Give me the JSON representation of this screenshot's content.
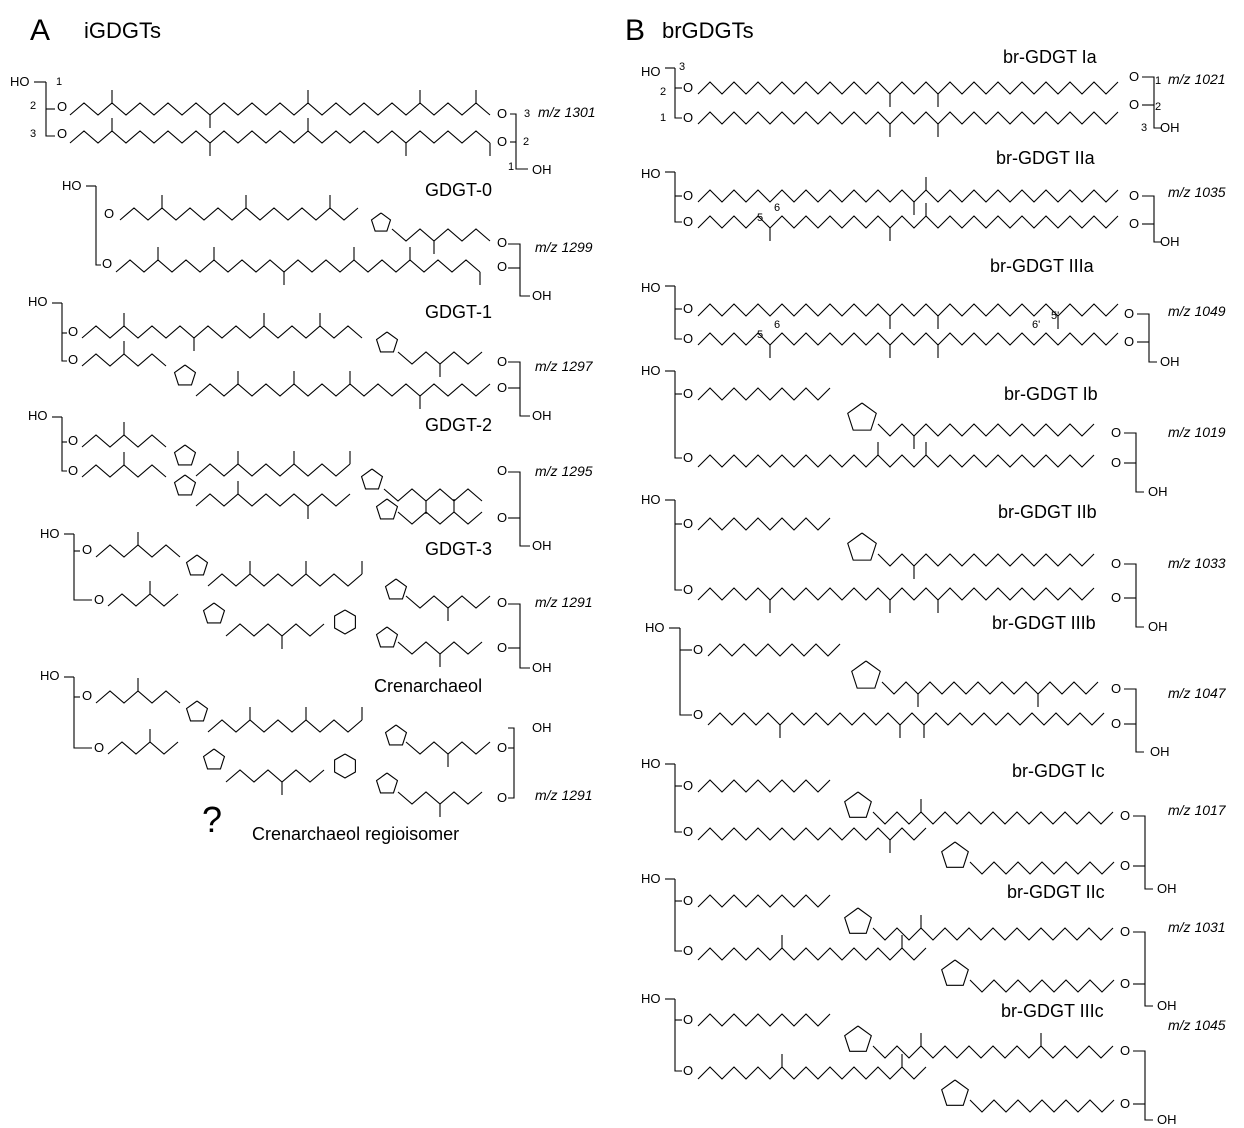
{
  "panels": [
    {
      "letter": "A",
      "title": "iGDGTs",
      "compounds": [
        {
          "name": "GDGT-0",
          "mz": "m/z 1301"
        },
        {
          "name": "GDGT-1",
          "mz": "m/z 1299"
        },
        {
          "name": "GDGT-2",
          "mz": "m/z 1297"
        },
        {
          "name": "GDGT-3",
          "mz": "m/z 1295"
        },
        {
          "name": "Crenarchaeol",
          "mz": "m/z 1291"
        },
        {
          "name": "Crenarchaeol regioisomer",
          "mz": "m/z 1291"
        }
      ],
      "unknown_marker": "?"
    },
    {
      "letter": "B",
      "title": "brGDGTs",
      "compounds": [
        {
          "name": "br-GDGT Ia",
          "mz": "m/z 1021"
        },
        {
          "name": "br-GDGT IIa",
          "mz": "m/z 1035"
        },
        {
          "name": "br-GDGT IIIa",
          "mz": "m/z 1049"
        },
        {
          "name": "br-GDGT Ib",
          "mz": "m/z 1019"
        },
        {
          "name": "br-GDGT IIb",
          "mz": "m/z 1033"
        },
        {
          "name": "br-GDGT IIIb",
          "mz": "m/z 1047"
        },
        {
          "name": "br-GDGT Ic",
          "mz": "m/z 1017"
        },
        {
          "name": "br-GDGT IIc",
          "mz": "m/z 1031"
        },
        {
          "name": "br-GDGT IIIc",
          "mz": "m/z 1045"
        }
      ]
    }
  ],
  "atoms": {
    "hydroxyl": "HO",
    "hydroxyl_right": "OH",
    "oxygen": "O"
  },
  "glycerol_positions": [
    "1",
    "2",
    "3"
  ],
  "methyl_positions": {
    "c5": "5",
    "c6": "6",
    "c5p": "5'",
    "c6p": "6'"
  }
}
